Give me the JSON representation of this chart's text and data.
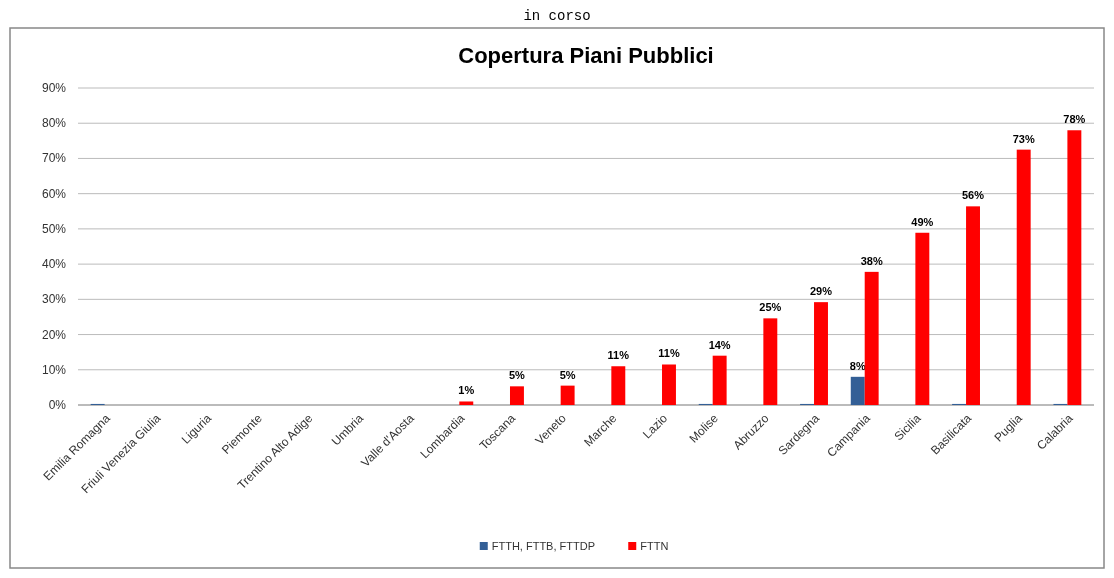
{
  "chart_data": {
    "type": "bar",
    "title": "Copertura Piani Pubblici",
    "annotations": [
      "in corso"
    ],
    "categories": [
      "Emilia Romagna",
      "Friuli Venezia Giulia",
      "Liguria",
      "Piemonte",
      "Trentino Alto Adige",
      "Umbria",
      "Valle d'Aosta",
      "Lombardia",
      "Toscana",
      "Veneto",
      "Marche",
      "Lazio",
      "Molise",
      "Abruzzo",
      "Sardegna",
      "Campania",
      "Sicilia",
      "Basilicata",
      "Puglia",
      "Calabria"
    ],
    "series": [
      {
        "name": "FTTH, FTTB, FTTDP",
        "color": "#335f96",
        "values": [
          0.3,
          0,
          0,
          0,
          0,
          0,
          0,
          0,
          0,
          0,
          0,
          0,
          0.3,
          0,
          0.3,
          8,
          0,
          0.3,
          0,
          0.3
        ],
        "value_labels": [
          null,
          null,
          null,
          null,
          null,
          null,
          null,
          null,
          null,
          null,
          null,
          null,
          null,
          null,
          null,
          "8%",
          null,
          null,
          null,
          null
        ]
      },
      {
        "name": "FTTN",
        "color": "#ff0000",
        "values": [
          0,
          0,
          0,
          0,
          0,
          0,
          0,
          1,
          5.3,
          5.5,
          11,
          11.5,
          14,
          24.6,
          29.2,
          37.8,
          48.9,
          56.4,
          72.5,
          78
        ],
        "value_labels": [
          null,
          null,
          null,
          null,
          null,
          null,
          null,
          "1%",
          "5%",
          "5%",
          "11%",
          "11%",
          "14%",
          "25%",
          "29%",
          "38%",
          "49%",
          "56%",
          "73%",
          "78%"
        ]
      }
    ],
    "ylim": [
      0,
      90
    ],
    "yticks": [
      {
        "value": 0,
        "label": "0%"
      },
      {
        "value": 10,
        "label": "10%"
      },
      {
        "value": 20,
        "label": "20%"
      },
      {
        "value": 30,
        "label": "30%"
      },
      {
        "value": 40,
        "label": "40%"
      },
      {
        "value": 50,
        "label": "50%"
      },
      {
        "value": 60,
        "label": "60%"
      },
      {
        "value": 70,
        "label": "70%"
      },
      {
        "value": 80,
        "label": "80%"
      },
      {
        "value": 90,
        "label": "90%"
      }
    ],
    "grid": "y",
    "legend": "bottom"
  }
}
